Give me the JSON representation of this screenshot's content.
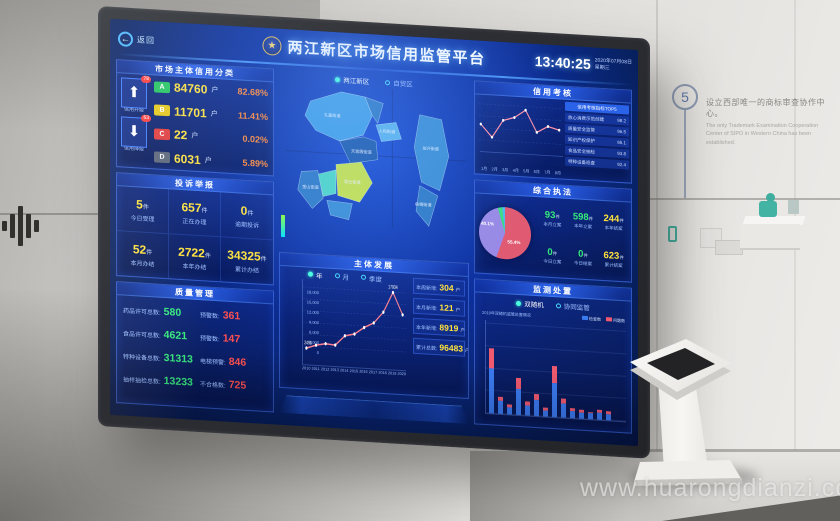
{
  "photo": {
    "watermark": "www.huarongdianzi.com",
    "wall_step_number": "5",
    "wall_caption_zh": "设立西部唯一的商标审查协作中心。",
    "wall_caption_en": "The only Trademark Examination Cooperation Center of SIPO in Western China has been established."
  },
  "colors": {
    "accent_yellow": "#ffe23d",
    "accent_green": "#35e97c",
    "accent_red": "#ff5050",
    "accent_orange": "#ff8a3d",
    "accent_cyan": "#49d8ff",
    "screen_blue": "#0d2f9a"
  },
  "dashboard": {
    "back_label": "返回",
    "back_icon": "←",
    "title": "两江新区市场信用监管平台",
    "emblem_icon": "★",
    "clock": {
      "time": "13:40:25",
      "date": "2020年07月08日",
      "weekday": "星期三"
    },
    "map": {
      "tabs": [
        {
          "label": "两江新区",
          "selected": true
        },
        {
          "label": "自贸区",
          "selected": false
        }
      ],
      "regions": [
        {
          "label": "礼嘉街道",
          "color": "#41a0e8"
        },
        {
          "label": "",
          "color": "#2f7bc8"
        },
        {
          "label": "人和街道",
          "color": "#5ab4ee"
        },
        {
          "label": "天宫殿街道",
          "color": "#1d5cb0"
        },
        {
          "label": "翠云街道",
          "color": "#c8e44c"
        },
        {
          "label": "",
          "color": "#4fd8c8"
        },
        {
          "label": "金山街道",
          "color": "#2f7bc8"
        },
        {
          "label": "",
          "color": "#3b8fd8"
        },
        {
          "label": "龙兴街道",
          "color": "#3b8fd8"
        },
        {
          "label": "鱼嘴街道",
          "color": "#2f7bc8"
        }
      ]
    },
    "credit": {
      "title": "市场主体信用分类",
      "up": {
        "badge": "78",
        "label": "信用升级",
        "arrow": "⬆"
      },
      "down": {
        "badge": "63",
        "label": "信用降级",
        "arrow": "⬇"
      },
      "rows": [
        {
          "grade": "A",
          "color": "#22c55e",
          "count": "84760",
          "unit": "户",
          "pct": "82.68%"
        },
        {
          "grade": "B",
          "color": "#e8c818",
          "count": "11701",
          "unit": "户",
          "pct": "11.41%"
        },
        {
          "grade": "C",
          "color": "#e23b3b",
          "count": "22",
          "unit": "户",
          "pct": "0.02%"
        },
        {
          "grade": "D",
          "color": "#5b6578",
          "count": "6031",
          "unit": "户",
          "pct": "5.89%"
        }
      ]
    },
    "complaints": {
      "title": "投诉举报",
      "cells": [
        {
          "value": "5",
          "unit": "件",
          "label": "今日受理"
        },
        {
          "value": "657",
          "unit": "件",
          "label": "正在办理"
        },
        {
          "value": "0",
          "unit": "件",
          "label": "逾期投诉"
        },
        {
          "value": "52",
          "unit": "件",
          "label": "本月办结"
        },
        {
          "value": "2722",
          "unit": "件",
          "label": "本年办结"
        },
        {
          "value": "34325",
          "unit": "件",
          "label": "累计办结"
        }
      ]
    },
    "quality": {
      "title": "质量管理",
      "rows": [
        {
          "label": "药品许可总数:",
          "value": "580"
        },
        {
          "label": "预警数:",
          "value": "361"
        },
        {
          "label": "食品许可总数:",
          "value": "4621"
        },
        {
          "label": "预警数:",
          "value": "147"
        },
        {
          "label": "特种设备总数:",
          "value": "31313"
        },
        {
          "label": "电梯预警:",
          "value": "846"
        },
        {
          "label": "抽样抽检总数:",
          "value": "13233"
        },
        {
          "label": "不合格数:",
          "value": "725"
        }
      ]
    },
    "development": {
      "title": "主体发展",
      "options": [
        {
          "label": "年",
          "selected": true
        },
        {
          "label": "月",
          "selected": false
        },
        {
          "label": "季度",
          "selected": false
        }
      ],
      "chart": {
        "type": "line",
        "x": [
          "2010",
          "2011",
          "2012",
          "2013",
          "2014",
          "2015",
          "2016",
          "2017",
          "2018",
          "2019",
          "2020"
        ],
        "values": [
          2498,
          3400,
          3900,
          3700,
          6200,
          6800,
          8600,
          9900,
          12800,
          17934,
          12400
        ],
        "first_label": "2498",
        "peak_label": "17934",
        "yticks": [
          "18,000",
          "15,000",
          "12,000",
          "9,000",
          "6,000",
          "3,000",
          "0"
        ],
        "ylim": [
          0,
          18000
        ]
      },
      "stats": [
        {
          "label": "本周新增:",
          "value": "304",
          "unit": "户"
        },
        {
          "label": "本月新增:",
          "value": "121",
          "unit": "户"
        },
        {
          "label": "本年新增:",
          "value": "8919",
          "unit": "户"
        },
        {
          "label": "累计总数:",
          "value": "96483",
          "unit": "户"
        }
      ]
    },
    "assessment": {
      "title": "信用考核",
      "chart": {
        "type": "line",
        "x": [
          "1月",
          "2月",
          "3月",
          "4月",
          "5月",
          "6月",
          "7月",
          "8月"
        ],
        "values": [
          55,
          30,
          65,
          72,
          88,
          45,
          58,
          52
        ]
      },
      "list_header": "信用考核指标TOP5",
      "list_rows": [
        {
          "text": "放心消费示范创建",
          "value": "98.2"
        },
        {
          "text": "质量安全监管",
          "value": "96.5"
        },
        {
          "text": "知识产权保护",
          "value": "95.1"
        },
        {
          "text": "食品安全抽检",
          "value": "93.8"
        },
        {
          "text": "特种设备巡查",
          "value": "92.4"
        }
      ]
    },
    "enforcement": {
      "title": "综合执法",
      "pie": [
        {
          "label": "55.4%",
          "value": 55.4,
          "color": "#e05a72"
        },
        {
          "label": "40.1%",
          "value": 40.1,
          "color": "#988ae6"
        },
        {
          "label": "",
          "value": 2.8,
          "color": "#3ddc84"
        },
        {
          "label": "",
          "value": 1.7,
          "color": "#4fb8f0"
        }
      ],
      "cells": [
        {
          "value": "93",
          "unit": "件",
          "label": "本月立案",
          "color": "#35e97c"
        },
        {
          "value": "598",
          "unit": "件",
          "label": "本年立案",
          "color": "#35e97c"
        },
        {
          "value": "244",
          "unit": "件",
          "label": "本年结案",
          "color": "#ffe23d"
        },
        {
          "value": "0",
          "unit": "件",
          "label": "今日立案",
          "color": "#35e97c"
        },
        {
          "value": "0",
          "unit": "件",
          "label": "今日结案",
          "color": "#35e97c"
        },
        {
          "value": "623",
          "unit": "件",
          "label": "累计结案",
          "color": "#ffe23d"
        }
      ]
    },
    "monitoring": {
      "title": "监测处置",
      "options": [
        {
          "label": "双随机",
          "selected": true
        },
        {
          "label": "协同监管",
          "selected": false
        }
      ],
      "note": "2019年双随机监管处置情况",
      "legend": [
        {
          "label": "检查数",
          "color": "#3b7bf0"
        },
        {
          "label": "问题数",
          "color": "#f05a6e"
        }
      ],
      "chart": {
        "type": "stacked-bar",
        "blue": [
          48,
          14,
          8,
          28,
          11,
          17,
          7,
          37,
          15,
          8,
          7,
          6,
          8,
          7
        ],
        "red": [
          22,
          4,
          3,
          12,
          4,
          7,
          3,
          18,
          5,
          3,
          3,
          2,
          3,
          3
        ]
      }
    }
  }
}
